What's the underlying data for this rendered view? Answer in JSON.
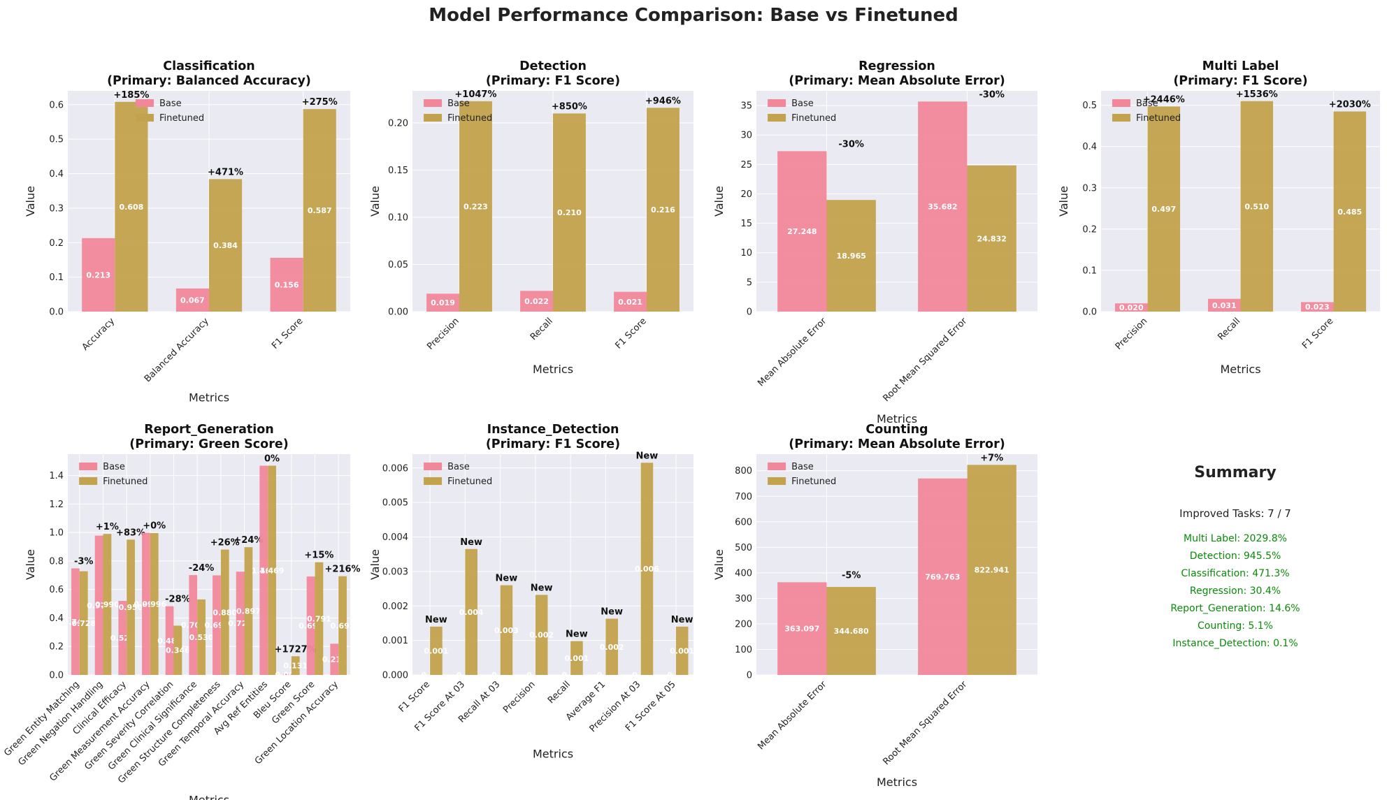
{
  "figure_title": "Model Performance Comparison: Base vs Finetuned",
  "colors": {
    "base": "#f2879a",
    "finetuned": "#c2a24c",
    "panel_bg": "#eaeaf2",
    "grid": "#ffffff",
    "summary_text": "#0a8a0a"
  },
  "legend": {
    "base": "Base",
    "finetuned": "Finetuned"
  },
  "chart_data": [
    {
      "type": "bar",
      "id": "classification",
      "title_line1": "Classification",
      "title_line2": "(Primary: Balanced Accuracy)",
      "xlabel": "Metrics",
      "ylabel": "Value",
      "legend_position": "upper-center",
      "categories": [
        "Accuracy",
        "Balanced Accuracy",
        "F1 Score"
      ],
      "ylim": [
        0,
        0.64
      ],
      "yticks": [
        0,
        0.1,
        0.2,
        0.3,
        0.4,
        0.5,
        0.6
      ],
      "series": [
        {
          "name": "Base",
          "values": [
            0.213,
            0.067,
            0.156
          ],
          "labels": [
            "0.213",
            "0.067",
            "0.156"
          ]
        },
        {
          "name": "Finetuned",
          "values": [
            0.608,
            0.384,
            0.587
          ],
          "labels": [
            "0.608",
            "0.384",
            "0.587"
          ]
        }
      ],
      "changes": [
        "+185%",
        "+471%",
        "+275%"
      ]
    },
    {
      "type": "bar",
      "id": "detection",
      "title_line1": "Detection",
      "title_line2": "(Primary: F1 Score)",
      "xlabel": "Metrics",
      "ylabel": "Value",
      "legend_position": "upper-left",
      "categories": [
        "Precision",
        "Recall",
        "F1 Score"
      ],
      "ylim": [
        0,
        0.234
      ],
      "yticks": [
        0,
        0.05,
        0.1,
        0.15,
        0.2
      ],
      "series": [
        {
          "name": "Base",
          "values": [
            0.019,
            0.022,
            0.021
          ],
          "labels": [
            "0.019",
            "0.022",
            "0.021"
          ]
        },
        {
          "name": "Finetuned",
          "values": [
            0.223,
            0.21,
            0.216
          ],
          "labels": [
            "0.223",
            "0.210",
            "0.216"
          ]
        }
      ],
      "changes": [
        "+1047%",
        "+850%",
        "+946%"
      ]
    },
    {
      "type": "bar",
      "id": "regression",
      "title_line1": "Regression",
      "title_line2": "(Primary: Mean Absolute Error)",
      "xlabel": "Metrics",
      "ylabel": "Value",
      "legend_position": "upper-left",
      "categories": [
        "Mean Absolute Error",
        "Root Mean Squared Error"
      ],
      "ylim": [
        0,
        37.5
      ],
      "yticks": [
        0,
        5,
        10,
        15,
        20,
        25,
        30,
        35
      ],
      "series": [
        {
          "name": "Base",
          "values": [
            27.248,
            35.682
          ],
          "labels": [
            "27.248",
            "35.682"
          ]
        },
        {
          "name": "Finetuned",
          "values": [
            18.965,
            24.832
          ],
          "labels": [
            "18.965",
            "24.832"
          ]
        }
      ],
      "changes": [
        "-30%",
        "-30%"
      ]
    },
    {
      "type": "bar",
      "id": "multi_label",
      "title_line1": "Multi Label",
      "title_line2": "(Primary: F1 Score)",
      "xlabel": "Metrics",
      "ylabel": "Value",
      "legend_position": "upper-left",
      "categories": [
        "Precision",
        "Recall",
        "F1 Score"
      ],
      "ylim": [
        0,
        0.535
      ],
      "yticks": [
        0,
        0.1,
        0.2,
        0.3,
        0.4,
        0.5
      ],
      "series": [
        {
          "name": "Base",
          "values": [
            0.02,
            0.031,
            0.023
          ],
          "labels": [
            "0.020",
            "0.031",
            "0.023"
          ]
        },
        {
          "name": "Finetuned",
          "values": [
            0.497,
            0.51,
            0.485
          ],
          "labels": [
            "0.497",
            "0.510",
            "0.485"
          ]
        }
      ],
      "changes": [
        "+2446%",
        "+1536%",
        "+2030%"
      ]
    },
    {
      "type": "bar",
      "id": "report_generation",
      "title_line1": "Report_Generation",
      "title_line2": "(Primary: Green Score)",
      "xlabel": "Metrics",
      "ylabel": "Value",
      "legend_position": "upper-left",
      "categories": [
        "Green Entity Matching",
        "Green Negation Handling",
        "Clinical Efficacy",
        "Green Measurement Accuracy",
        "Green Severity Correlation",
        "Green Clinical Significance",
        "Green Structure Completeness",
        "Green Temporal Accuracy",
        "Avg Ref Entities",
        "Bleu Score",
        "Green Score",
        "Green Location Accuracy"
      ],
      "ylim": [
        0,
        1.55
      ],
      "yticks": [
        0,
        0.2,
        0.4,
        0.6,
        0.8,
        1.0,
        1.2,
        1.4
      ],
      "series": [
        {
          "name": "Base",
          "values": [
            0.748,
            0.978,
            0.52,
            0.998,
            0.482,
            0.701,
            0.699,
            0.725,
            1.469,
            0.007,
            0.691,
            0.219
          ],
          "labels": [
            "0.748",
            "0.978",
            "0.520",
            "0.998",
            "0.482",
            "0.701",
            "0.699",
            "0.725",
            "1.469",
            "0.007",
            "0.691",
            "0.219"
          ]
        },
        {
          "name": "Finetuned",
          "values": [
            0.728,
            0.99,
            0.95,
            0.996,
            0.346,
            0.53,
            0.88,
            0.897,
            1.469,
            0.131,
            0.791,
            0.693
          ],
          "labels": [
            "0.728",
            "0.990",
            "0.950",
            "0.996",
            "0.346",
            "0.530",
            "0.880",
            "0.897",
            "1.469",
            "0.131",
            "0.791",
            "0.693"
          ]
        }
      ],
      "changes": [
        "-3%",
        "+1%",
        "+83%",
        "+0%",
        "-28%",
        "-24%",
        "+26%",
        "+24%",
        "0%",
        "+1727%",
        "+15%",
        "+216%"
      ]
    },
    {
      "type": "bar",
      "id": "instance_detection",
      "title_line1": "Instance_Detection",
      "title_line2": "(Primary: F1 Score)",
      "xlabel": "Metrics",
      "ylabel": "Value",
      "legend_position": "upper-left",
      "categories": [
        "F1 Score",
        "F1 Score At 03",
        "Recall At 03",
        "Precision",
        "Recall",
        "Average F1",
        "Precision At 03",
        "F1 Score At 05"
      ],
      "ylim": [
        0,
        0.0064
      ],
      "yticks": [
        0,
        0.001,
        0.002,
        0.003,
        0.004,
        0.005,
        0.006
      ],
      "series": [
        {
          "name": "Base",
          "values": [
            0,
            0,
            0,
            0,
            0,
            0,
            0,
            0
          ],
          "labels": [
            "0",
            "0",
            "0",
            "0",
            "0",
            "0",
            "0",
            "0"
          ]
        },
        {
          "name": "Finetuned",
          "values": [
            0.0014,
            0.00365,
            0.0026,
            0.00232,
            0.00098,
            0.00163,
            0.00615,
            0.0014
          ],
          "labels": [
            "0.001",
            "0.004",
            "0.003",
            "0.002",
            "0.001",
            "0.002",
            "0.006",
            "0.001"
          ]
        }
      ],
      "changes": [
        "New",
        "New",
        "New",
        "New",
        "New",
        "New",
        "New",
        "New"
      ]
    },
    {
      "type": "bar",
      "id": "counting",
      "title_line1": "Counting",
      "title_line2": "(Primary: Mean Absolute Error)",
      "xlabel": "Metrics",
      "ylabel": "Value",
      "legend_position": "upper-left",
      "categories": [
        "Mean Absolute Error",
        "Root Mean Squared Error"
      ],
      "ylim": [
        0,
        865
      ],
      "yticks": [
        0,
        100,
        200,
        300,
        400,
        500,
        600,
        700,
        800
      ],
      "series": [
        {
          "name": "Base",
          "values": [
            363.097,
            769.763
          ],
          "labels": [
            "363.097",
            "769.763"
          ]
        },
        {
          "name": "Finetuned",
          "values": [
            344.68,
            822.941
          ],
          "labels": [
            "344.680",
            "822.941"
          ]
        }
      ],
      "changes": [
        "-5%",
        "+7%"
      ]
    }
  ],
  "summary": {
    "title": "Summary",
    "improved": "Improved Tasks: 7 / 7",
    "lines": [
      "Multi Label: 2029.8%",
      "Detection: 945.5%",
      "Classification: 471.3%",
      "Regression: 30.4%",
      "Report_Generation: 14.6%",
      "Counting: 5.1%",
      "Instance_Detection: 0.1%"
    ]
  }
}
